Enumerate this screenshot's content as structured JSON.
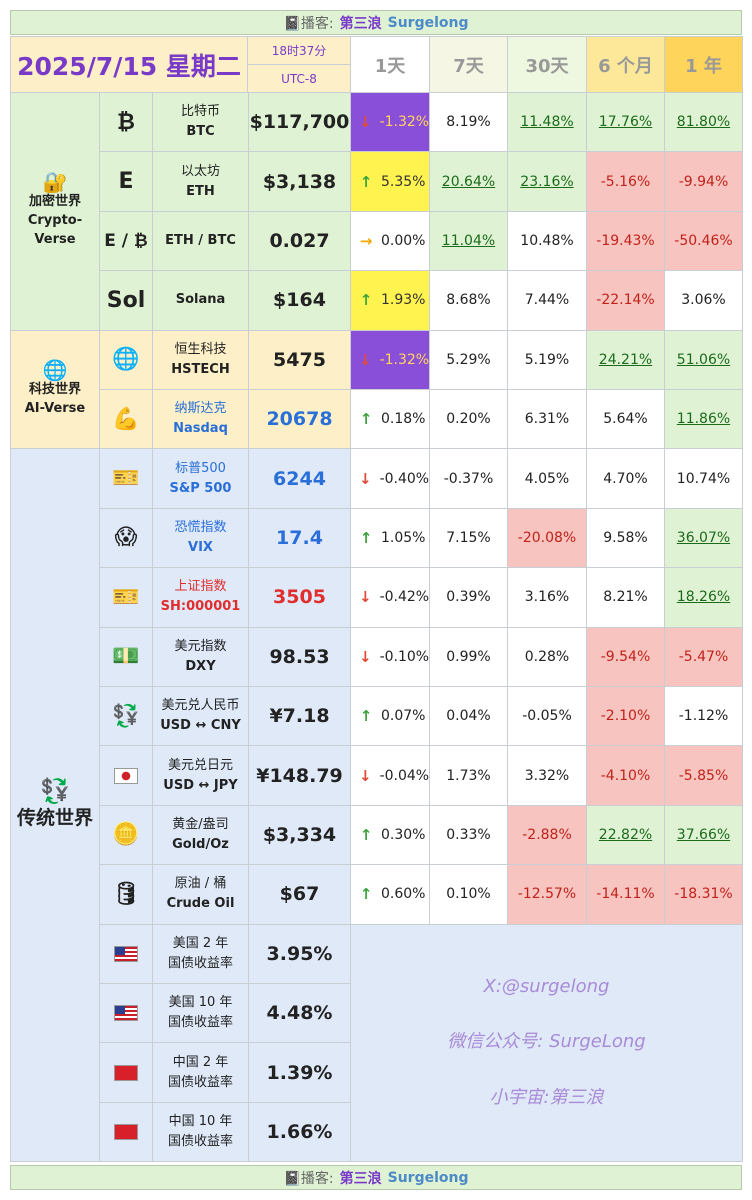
{
  "banner": {
    "prefix": "📓播客:",
    "name_cn": "第三浪",
    "name_en": "Surgelong"
  },
  "header": {
    "date": "2025/7/15 星期二",
    "time": "18时37分",
    "tz": "UTC-8",
    "periods": [
      "1天",
      "7天",
      "30天",
      "6 个月",
      "1 年"
    ]
  },
  "categories": {
    "crypto": {
      "icon": "🔐",
      "cn": "加密世界",
      "en": "Crypto-Verse"
    },
    "ai": {
      "icon": "🌐",
      "cn": "科技世界",
      "en": "AI-Verse"
    },
    "trad": {
      "icon": "💱",
      "cn": "传统世界"
    }
  },
  "rows": [
    {
      "icon": "₿",
      "cn": "比特币",
      "en": "BTC",
      "price": "$117,700",
      "arrow": "↓",
      "p": [
        "-1.32%",
        "8.19%",
        "11.48%",
        "17.76%",
        "81.80%"
      ]
    },
    {
      "icon": "E",
      "cn": "以太坊",
      "en": "ETH",
      "price": "$3,138",
      "arrow": "↑",
      "p": [
        "5.35%",
        "20.64%",
        "23.16%",
        "-5.16%",
        "-9.94%"
      ]
    },
    {
      "icon": "E / ₿",
      "cn": "",
      "en": "ETH / BTC",
      "price": "0.027",
      "arrow": "→",
      "p": [
        "0.00%",
        "11.04%",
        "10.48%",
        "-19.43%",
        "-50.46%"
      ]
    },
    {
      "icon": "Sol",
      "cn": "",
      "en": "Solana",
      "price": "$164",
      "arrow": "↑",
      "p": [
        "1.93%",
        "8.68%",
        "7.44%",
        "-22.14%",
        "3.06%"
      ]
    },
    {
      "icon": "🌐",
      "cn": "恒生科技",
      "en": "HSTECH",
      "price": "5475",
      "arrow": "↓",
      "p": [
        "-1.32%",
        "5.29%",
        "5.19%",
        "24.21%",
        "51.06%"
      ]
    },
    {
      "icon": "💪",
      "cn": "纳斯达克",
      "en": "Nasdaq",
      "price": "20678",
      "arrow": "↑",
      "p": [
        "0.18%",
        "0.20%",
        "6.31%",
        "5.64%",
        "11.86%"
      ]
    },
    {
      "icon": "🎫",
      "cn": "标普500",
      "en": "S&P 500",
      "price": "6244",
      "arrow": "↓",
      "p": [
        "-0.40%",
        "-0.37%",
        "4.05%",
        "4.70%",
        "10.74%"
      ]
    },
    {
      "icon": "😱",
      "cn": "恐慌指数",
      "en": "VIX",
      "price": "17.4",
      "arrow": "↑",
      "p": [
        "1.05%",
        "7.15%",
        "-20.08%",
        "9.58%",
        "36.07%"
      ]
    },
    {
      "icon": "🎫",
      "cn": "上证指数",
      "en": "SH:000001",
      "price": "3505",
      "arrow": "↓",
      "p": [
        "-0.42%",
        "0.39%",
        "3.16%",
        "8.21%",
        "18.26%"
      ]
    },
    {
      "icon": "💵",
      "cn": "美元指数",
      "en": "DXY",
      "price": "98.53",
      "arrow": "↓",
      "p": [
        "-0.10%",
        "0.99%",
        "0.28%",
        "-9.54%",
        "-5.47%"
      ]
    },
    {
      "icon": "💱",
      "cn": "美元兑人民币",
      "en": "USD ↔ CNY",
      "price": "¥7.18",
      "arrow": "↑",
      "p": [
        "0.07%",
        "0.04%",
        "-0.05%",
        "-2.10%",
        "-1.12%"
      ]
    },
    {
      "icon": "jp-flag",
      "cn": "美元兑日元",
      "en": "USD ↔ JPY",
      "price": "¥148.79",
      "arrow": "↓",
      "p": [
        "-0.04%",
        "1.73%",
        "3.32%",
        "-4.10%",
        "-5.85%"
      ]
    },
    {
      "icon": "🪙",
      "cn": "黄金/盎司",
      "en": "Gold/Oz",
      "price": "$3,334",
      "arrow": "↑",
      "p": [
        "0.30%",
        "0.33%",
        "-2.88%",
        "22.82%",
        "37.66%"
      ]
    },
    {
      "icon": "🛢",
      "cn": "原油 / 桶",
      "en": "Crude Oil",
      "price": "$67",
      "arrow": "↑",
      "p": [
        "0.60%",
        "0.10%",
        "-12.57%",
        "-14.11%",
        "-18.31%"
      ]
    }
  ],
  "bonds": [
    {
      "flag": "us",
      "l1": "美国 2 年",
      "l2": "国债收益率",
      "price": "3.95%"
    },
    {
      "flag": "us",
      "l1": "美国 10 年",
      "l2": "国债收益率",
      "price": "4.48%"
    },
    {
      "flag": "cn",
      "l1": "中国 2 年",
      "l2": "国债收益率",
      "price": "1.39%"
    },
    {
      "flag": "cn",
      "l1": "中国 10 年",
      "l2": "国债收益率",
      "price": "1.66%"
    }
  ],
  "watermark": [
    "X:@surgelong",
    "微信公众号: SurgeLong",
    "小宇宙:第三浪"
  ],
  "colors": {
    "purple": "#8a4fd8",
    "yellow": "#fff44f",
    "green": "#dff3d4",
    "red": "#f8c4c0",
    "cream": "#fdf0c8",
    "blue": "#dfe9f8",
    "up": "#3ea33e",
    "down": "#e04b3a",
    "side": "#ffd45a"
  }
}
